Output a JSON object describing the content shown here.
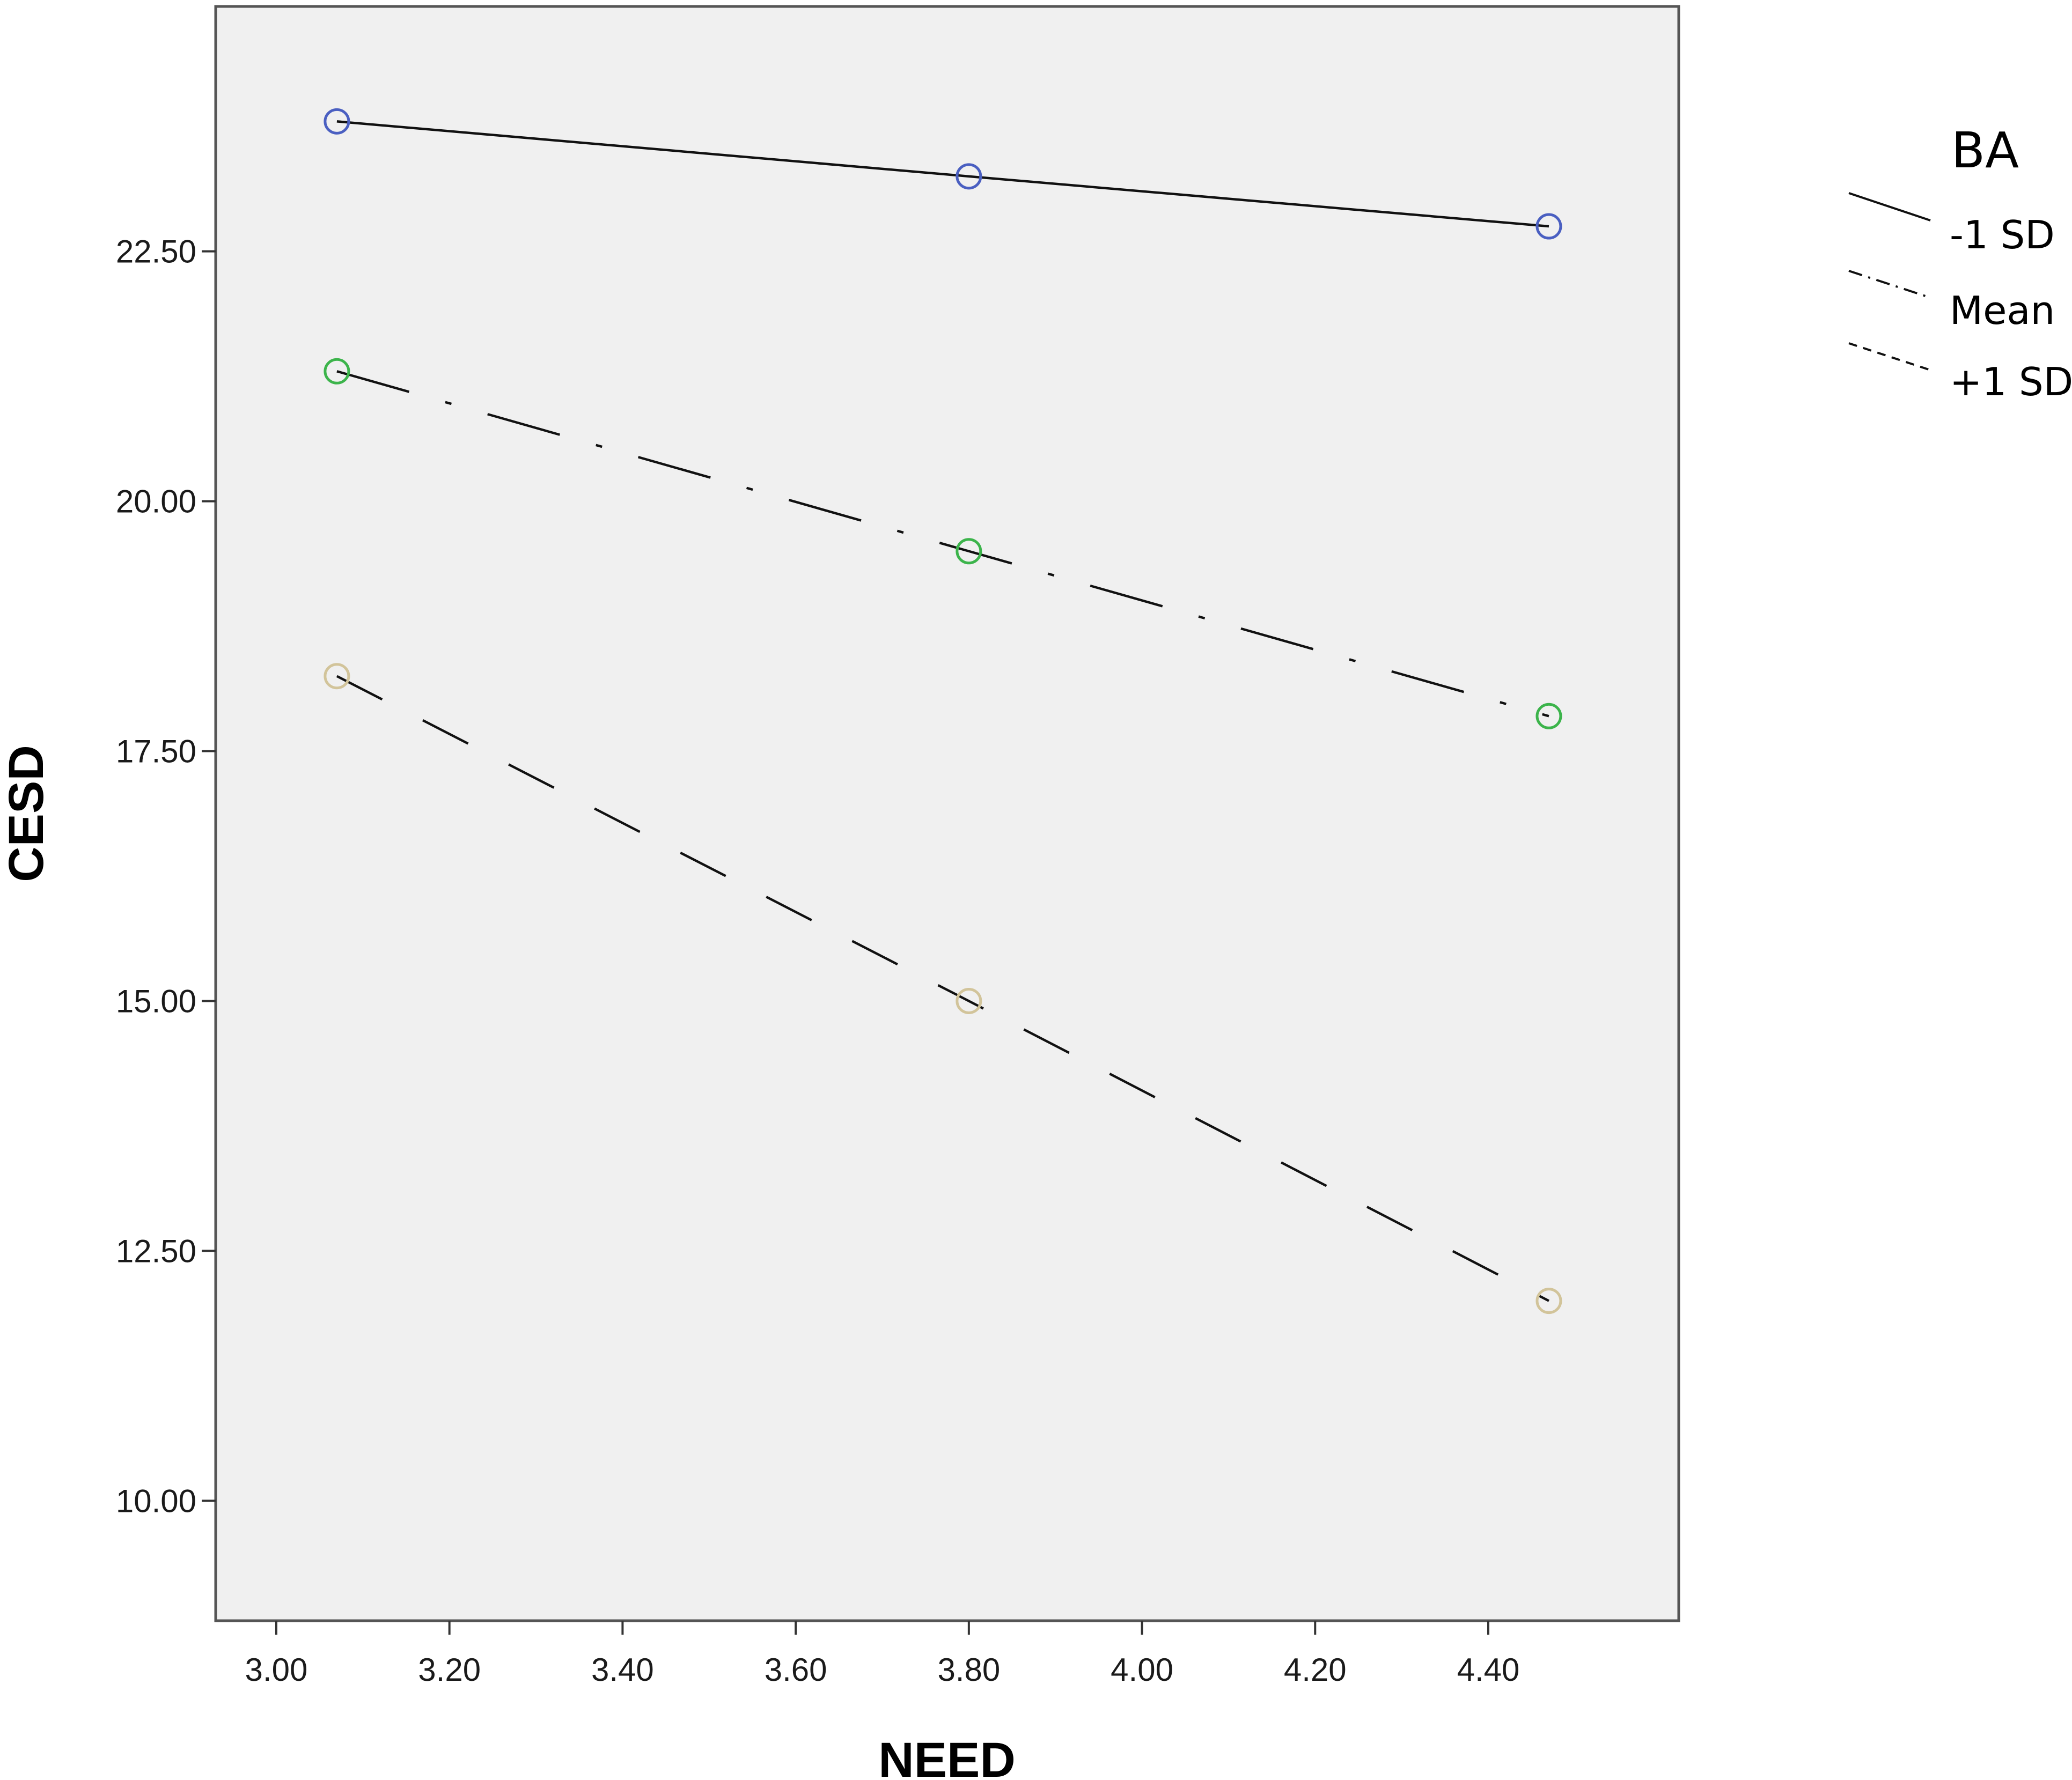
{
  "chart_data": {
    "type": "line",
    "xlabel": "NEED",
    "ylabel": "CESD",
    "xlim": [
      2.93,
      4.62
    ],
    "ylim": [
      8.8,
      24.95
    ],
    "xticks": [
      "3.00",
      "3.20",
      "3.40",
      "3.60",
      "3.80",
      "4.00",
      "4.20",
      "4.40"
    ],
    "yticks": [
      "10.00",
      "12.50",
      "15.00",
      "17.50",
      "20.00",
      "22.50"
    ],
    "grid": false,
    "legend": {
      "title": "BA",
      "position": "right"
    },
    "series": [
      {
        "name": "-1 SD",
        "style": "solid",
        "marker_color": "#4a5fc1",
        "x": [
          3.07,
          3.8,
          4.47
        ],
        "y": [
          23.8,
          23.25,
          22.75
        ]
      },
      {
        "name": "Mean",
        "style": "dashdot",
        "marker_color": "#3cb44b",
        "x": [
          3.07,
          3.8,
          4.47
        ],
        "y": [
          21.3,
          19.5,
          17.85
        ]
      },
      {
        "name": "+1 SD",
        "style": "dashed",
        "marker_color": "#d2c49a",
        "x": [
          3.07,
          3.8,
          4.47
        ],
        "y": [
          18.25,
          15.0,
          12.0
        ]
      }
    ]
  }
}
